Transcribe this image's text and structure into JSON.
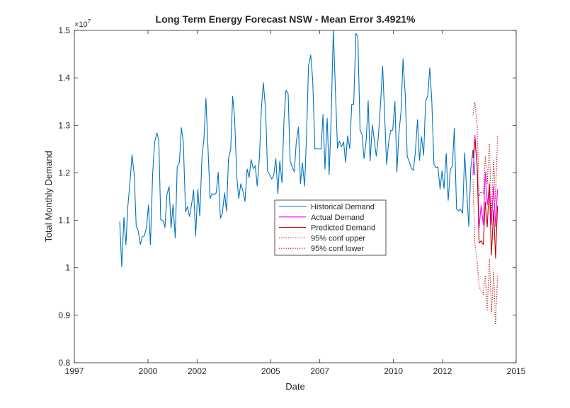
{
  "chart_data": {
    "type": "line",
    "title": "Long Term Energy Forecast NSW - Mean Error 3.4921%",
    "xlabel": "Date",
    "ylabel": "Total Monthly Demand",
    "y_exponent_label": "×10",
    "y_exponent_power": "7",
    "xlim": [
      1997,
      2015
    ],
    "ylim": [
      0.8,
      1.5
    ],
    "x_ticks": [
      1997,
      2000,
      2002,
      2005,
      2007,
      2010,
      2012,
      2015
    ],
    "x_tick_labels": [
      "1997",
      "2000",
      "2002",
      "2005",
      "2007",
      "2010",
      "2012",
      "2015"
    ],
    "y_ticks": [
      0.8,
      0.9,
      1.0,
      1.1,
      1.2,
      1.3,
      1.4,
      1.5
    ],
    "y_tick_labels": [
      "0.8",
      "0.9",
      "1",
      "1.1",
      "1.2",
      "1.3",
      "1.4",
      "1.5"
    ],
    "grid": false,
    "legend_position": "center",
    "series": [
      {
        "name": "Historical Demand",
        "color": "#0072bd",
        "style": "solid",
        "x": [
          1998.85,
          1998.93,
          1999.02,
          1999.1,
          1999.18,
          1999.27,
          1999.35,
          1999.44,
          1999.52,
          1999.6,
          1999.69,
          1999.77,
          1999.85,
          1999.94,
          2000.02,
          2000.1,
          2000.19,
          2000.27,
          2000.36,
          2000.44,
          2000.52,
          2000.61,
          2000.69,
          2000.77,
          2000.86,
          2000.94,
          2001.02,
          2001.11,
          2001.19,
          2001.28,
          2001.36,
          2001.44,
          2001.53,
          2001.61,
          2001.69,
          2001.78,
          2001.86,
          2001.94,
          2002.03,
          2002.11,
          2002.2,
          2002.28,
          2002.36,
          2002.45,
          2002.53,
          2002.61,
          2002.7,
          2002.78,
          2002.86,
          2002.95,
          2003.03,
          2003.12,
          2003.2,
          2003.28,
          2003.37,
          2003.45,
          2003.53,
          2003.62,
          2003.7,
          2003.78,
          2003.87,
          2003.95,
          2004.04,
          2004.12,
          2004.2,
          2004.29,
          2004.37,
          2004.45,
          2004.54,
          2004.62,
          2004.7,
          2004.79,
          2004.87,
          2004.96,
          2005.04,
          2005.12,
          2005.21,
          2005.29,
          2005.37,
          2005.46,
          2005.54,
          2005.62,
          2005.71,
          2005.79,
          2005.88,
          2005.96,
          2006.04,
          2006.13,
          2006.21,
          2006.29,
          2006.38,
          2006.46,
          2006.54,
          2006.63,
          2006.71,
          2006.8,
          2006.88,
          2006.96,
          2007.05,
          2007.13,
          2007.21,
          2007.3,
          2007.38,
          2007.46,
          2007.55,
          2007.63,
          2007.72,
          2007.8,
          2007.88,
          2007.97,
          2008.05,
          2008.13,
          2008.22,
          2008.3,
          2008.38,
          2008.47,
          2008.55,
          2008.64,
          2008.72,
          2008.8,
          2008.89,
          2008.97,
          2009.05,
          2009.14,
          2009.22,
          2009.3,
          2009.39,
          2009.47,
          2009.56,
          2009.64,
          2009.72,
          2009.81,
          2009.89,
          2009.97,
          2010.06,
          2010.14,
          2010.22,
          2010.31,
          2010.39,
          2010.48,
          2010.56,
          2010.64,
          2010.73,
          2010.81,
          2010.89,
          2010.98,
          2011.06,
          2011.14,
          2011.23,
          2011.31,
          2011.4,
          2011.48,
          2011.56,
          2011.65,
          2011.73,
          2011.81,
          2011.9,
          2011.98,
          2012.06,
          2012.15,
          2012.23,
          2012.32,
          2012.4,
          2012.48,
          2012.57,
          2012.65,
          2012.73,
          2012.82,
          2012.9,
          2012.98,
          2013.07,
          2013.15,
          2013.24,
          2013.32
        ],
        "y": [
          1.097,
          1.002,
          1.106,
          1.048,
          1.13,
          1.182,
          1.238,
          1.196,
          1.088,
          1.078,
          1.049,
          1.066,
          1.067,
          1.085,
          1.132,
          1.049,
          1.198,
          1.264,
          1.284,
          1.27,
          1.101,
          1.1,
          1.085,
          1.154,
          1.171,
          1.084,
          1.133,
          1.063,
          1.212,
          1.222,
          1.295,
          1.264,
          1.118,
          1.129,
          1.108,
          1.135,
          1.164,
          1.067,
          1.165,
          1.109,
          1.234,
          1.272,
          1.357,
          1.246,
          1.146,
          1.156,
          1.154,
          1.158,
          1.201,
          1.104,
          1.115,
          1.158,
          1.119,
          1.23,
          1.25,
          1.361,
          1.314,
          1.189,
          1.146,
          1.177,
          1.161,
          1.14,
          1.208,
          1.19,
          1.228,
          1.209,
          1.215,
          1.172,
          1.232,
          1.336,
          1.39,
          1.334,
          1.204,
          1.196,
          1.187,
          1.194,
          1.23,
          1.156,
          1.225,
          1.179,
          1.311,
          1.374,
          1.367,
          1.225,
          1.212,
          1.202,
          1.264,
          1.296,
          1.177,
          1.221,
          1.172,
          1.278,
          1.426,
          1.448,
          1.396,
          1.25,
          1.252,
          1.25,
          1.25,
          1.323,
          1.208,
          1.315,
          1.196,
          1.31,
          1.501,
          1.383,
          1.252,
          1.267,
          1.255,
          1.265,
          1.222,
          1.278,
          1.251,
          1.344,
          1.344,
          1.494,
          1.486,
          1.289,
          1.281,
          1.23,
          1.268,
          1.352,
          1.225,
          1.301,
          1.269,
          1.235,
          1.279,
          1.343,
          1.425,
          1.323,
          1.218,
          1.267,
          1.289,
          1.29,
          1.35,
          1.202,
          1.282,
          1.33,
          1.44,
          1.365,
          1.235,
          1.224,
          1.21,
          1.205,
          1.242,
          1.312,
          1.226,
          1.276,
          1.237,
          1.351,
          1.363,
          1.421,
          1.354,
          1.218,
          1.211,
          1.213,
          1.166,
          1.204,
          1.167,
          1.241,
          1.142,
          1.207,
          1.214,
          1.294,
          1.124,
          1.12,
          1.123,
          1.115,
          1.242,
          1.164,
          1.087,
          1.209,
          1.248,
          1.195
        ]
      },
      {
        "name": "Actual Demand",
        "color": "#ff00ff",
        "style": "solid",
        "x": [
          2013.24,
          2013.32,
          2013.41,
          2013.49,
          2013.57,
          2013.66,
          2013.74,
          2013.82,
          2013.91,
          2013.99,
          2014.08,
          2014.16,
          2014.24
        ],
        "y": [
          1.195,
          1.279,
          1.215,
          1.084,
          1.131,
          1.091,
          1.201,
          1.132,
          1.172,
          1.091,
          1.173,
          1.087,
          1.166
        ]
      },
      {
        "name": "Predicted Demand",
        "color": "#c00000",
        "style": "solid",
        "x": [
          2013.24,
          2013.32,
          2013.41,
          2013.49,
          2013.57,
          2013.66,
          2013.74,
          2013.82,
          2013.91,
          2013.99,
          2014.08,
          2014.16,
          2014.24
        ],
        "y": [
          1.231,
          1.269,
          1.216,
          1.052,
          1.057,
          1.049,
          1.139,
          1.086,
          1.177,
          1.027,
          1.122,
          1.02,
          1.131
        ]
      },
      {
        "name": "95% conf upper",
        "color": "#c00000",
        "style": "dotted",
        "x": [
          2013.24,
          2013.32,
          2013.41,
          2013.49,
          2013.57,
          2013.66,
          2013.74,
          2013.82,
          2013.91,
          2013.99,
          2014.08,
          2014.16,
          2014.24
        ],
        "y": [
          1.321,
          1.349,
          1.3,
          1.151,
          1.16,
          1.156,
          1.234,
          1.178,
          1.262,
          1.11,
          1.227,
          1.142,
          1.278
        ]
      },
      {
        "name": "95% conf lower",
        "color": "#c00000",
        "style": "dotted",
        "x": [
          2013.24,
          2013.32,
          2013.41,
          2013.49,
          2013.57,
          2013.66,
          2013.74,
          2013.82,
          2013.91,
          2013.99,
          2014.08,
          2014.16,
          2014.24
        ],
        "y": [
          1.186,
          1.049,
          1.013,
          0.96,
          0.953,
          0.944,
          0.984,
          0.911,
          1.019,
          0.906,
          0.991,
          0.88,
          0.983
        ]
      }
    ]
  }
}
